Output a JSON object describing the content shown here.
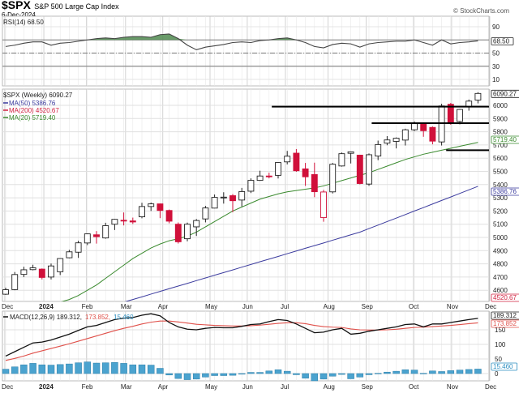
{
  "header": {
    "symbol": "$SPX",
    "name": "S&P 500 Large Cap Index",
    "date": "6-Dec-2024",
    "watermark": "© StockCharts.com"
  },
  "chart_data": [
    {
      "type": "line",
      "panel": "rsi",
      "label": "RSI(14) 68.50",
      "last_value": "68.50",
      "ylim": [
        0,
        100
      ],
      "ticks": [
        "90",
        "50",
        "30",
        "10"
      ],
      "reference_lines": [
        70,
        50,
        30
      ],
      "values": [
        60,
        62,
        65,
        67,
        67,
        62,
        65,
        66,
        68,
        70,
        72,
        73,
        72,
        74,
        75,
        75,
        74,
        78,
        79,
        72,
        62,
        55,
        59,
        61,
        63,
        66,
        67,
        66,
        69,
        70,
        72,
        73,
        70,
        66,
        60,
        58,
        63,
        65,
        64,
        59,
        64,
        66,
        67,
        68,
        68,
        70,
        66,
        62,
        70,
        64,
        66,
        67,
        68.5
      ],
      "colors": {
        "line": "#444444",
        "overbought_fill": "#4f8a4f"
      }
    },
    {
      "type": "candlestick",
      "panel": "price",
      "label": "$SPX (Weekly) 6090.27",
      "last_value": "6090.27",
      "ylim": [
        4560,
        6130
      ],
      "ticks": [
        "6000",
        "5900",
        "5800",
        "5700",
        "5600",
        "5500",
        "5400",
        "5300",
        "5200",
        "5100",
        "5000",
        "4900",
        "4800",
        "4700",
        "4600"
      ],
      "x_labels": [
        "Dec",
        "2024",
        "Feb",
        "Mar",
        "Apr",
        "May",
        "Jun",
        "Jul",
        "Aug",
        "Sep",
        "Oct",
        "Nov",
        "Dec"
      ],
      "ohlc": [
        [
          4570,
          4620,
          4565,
          4604
        ],
        [
          4605,
          4738,
          4600,
          4719
        ],
        [
          4720,
          4778,
          4700,
          4755
        ],
        [
          4756,
          4793,
          4751,
          4770
        ],
        [
          4760,
          4765,
          4682,
          4697
        ],
        [
          4700,
          4802,
          4682,
          4784
        ],
        [
          4740,
          4842,
          4715,
          4840
        ],
        [
          4846,
          4906,
          4842,
          4891
        ],
        [
          4888,
          4975,
          4845,
          4959
        ],
        [
          4958,
          5030,
          4942,
          5027
        ],
        [
          5020,
          5048,
          4953,
          5006
        ],
        [
          4996,
          5111,
          4990,
          5089
        ],
        [
          5100,
          5140,
          5056,
          5137
        ],
        [
          5130,
          5189,
          5091,
          5124
        ],
        [
          5125,
          5150,
          5102,
          5117
        ],
        [
          5156,
          5262,
          5145,
          5234
        ],
        [
          5234,
          5264,
          5200,
          5254
        ],
        [
          5254,
          5256,
          5146,
          5204
        ],
        [
          5204,
          5211,
          5107,
          5123
        ],
        [
          5100,
          5113,
          4954,
          4967
        ],
        [
          4990,
          5112,
          4971,
          5100
        ],
        [
          5080,
          5139,
          5011,
          5128
        ],
        [
          5140,
          5239,
          5114,
          5223
        ],
        [
          5222,
          5325,
          5220,
          5303
        ],
        [
          5305,
          5342,
          5256,
          5305
        ],
        [
          5316,
          5328,
          5191,
          5278
        ],
        [
          5283,
          5375,
          5234,
          5347
        ],
        [
          5350,
          5447,
          5336,
          5432
        ],
        [
          5432,
          5505,
          5428,
          5465
        ],
        [
          5465,
          5490,
          5447,
          5460
        ],
        [
          5470,
          5570,
          5446,
          5567
        ],
        [
          5572,
          5655,
          5553,
          5615
        ],
        [
          5638,
          5669,
          5497,
          5505
        ],
        [
          5519,
          5564,
          5390,
          5459
        ],
        [
          5476,
          5566,
          5305,
          5346
        ],
        [
          5150,
          5360,
          5119,
          5344
        ],
        [
          5345,
          5564,
          5333,
          5554
        ],
        [
          5541,
          5643,
          5536,
          5634
        ],
        [
          5637,
          5651,
          5560,
          5648
        ],
        [
          5623,
          5626,
          5402,
          5408
        ],
        [
          5404,
          5636,
          5390,
          5626
        ],
        [
          5616,
          5733,
          5585,
          5703
        ],
        [
          5714,
          5767,
          5698,
          5738
        ],
        [
          5727,
          5757,
          5674,
          5751
        ],
        [
          5737,
          5823,
          5696,
          5815
        ],
        [
          5815,
          5878,
          5805,
          5865
        ],
        [
          5857,
          5862,
          5762,
          5808
        ],
        [
          5833,
          5840,
          5705,
          5729
        ],
        [
          5723,
          6012,
          5696,
          5995
        ],
        [
          6008,
          6018,
          5853,
          5870
        ],
        [
          5878,
          5972,
          5856,
          5969
        ],
        [
          5992,
          6044,
          5960,
          6032
        ],
        [
          6040,
          6099,
          6015,
          6090
        ]
      ],
      "support_lines": [
        5990,
        5865,
        5660
      ],
      "moving_averages": [
        {
          "name": "MA(50)",
          "value": "5386.76",
          "color": "#3b3b9e",
          "values": [
            null,
            null,
            null,
            null,
            null,
            null,
            null,
            null,
            null,
            null,
            null,
            null,
            4490,
            4510,
            4530,
            4550,
            4571,
            4591,
            4612,
            4632,
            4652,
            4673,
            4693,
            4714,
            4734,
            4754,
            4775,
            4795,
            4816,
            4836,
            4856,
            4877,
            4897,
            4918,
            4938,
            4958,
            4979,
            4999,
            5020,
            5040,
            5067,
            5093,
            5120,
            5146,
            5173,
            5200,
            5226,
            5253,
            5280,
            5306,
            5333,
            5360,
            5386.76
          ]
        },
        {
          "name": "MA(200)",
          "value": "4520.67",
          "color": "#d0203f",
          "values": []
        },
        {
          "name": "MA(20)",
          "value": "5719.40",
          "color": "#3a8a2e",
          "values": [
            4420,
            4435,
            4450,
            4465,
            4480,
            4495,
            4510,
            4530,
            4560,
            4600,
            4640,
            4690,
            4740,
            4790,
            4840,
            4880,
            4920,
            4950,
            4975,
            4990,
            5010,
            5040,
            5080,
            5120,
            5160,
            5200,
            5230,
            5260,
            5290,
            5310,
            5330,
            5345,
            5355,
            5365,
            5375,
            5390,
            5410,
            5430,
            5450,
            5470,
            5490,
            5515,
            5540,
            5565,
            5590,
            5610,
            5630,
            5645,
            5660,
            5675,
            5690,
            5705,
            5719.4
          ]
        }
      ],
      "colors": {
        "up": "#ffffff",
        "down": "#d0103a",
        "outline": "#222222"
      }
    },
    {
      "type": "line+bar",
      "panel": "macd",
      "label": "MACD(12,26,9)",
      "macd_value": "189.312",
      "signal_value": "173.852",
      "histogram_value": "15.460",
      "ylim": [
        -20,
        215
      ],
      "ticks": [
        "150",
        "100",
        "50",
        "0"
      ],
      "macd": [
        60,
        75,
        90,
        105,
        108,
        115,
        125,
        135,
        148,
        160,
        165,
        175,
        185,
        190,
        192,
        200,
        205,
        198,
        175,
        160,
        152,
        150,
        155,
        158,
        157,
        157,
        162,
        168,
        170,
        178,
        185,
        182,
        170,
        155,
        140,
        142,
        150,
        155,
        135,
        138,
        145,
        150,
        155,
        160,
        168,
        170,
        160,
        170,
        170,
        175,
        180,
        185,
        189.3
      ],
      "signal": [
        45,
        52,
        60,
        70,
        78,
        86,
        94,
        102,
        111,
        120,
        129,
        138,
        147,
        155,
        162,
        170,
        176,
        180,
        180,
        177,
        173,
        169,
        167,
        165,
        164,
        163,
        163,
        164,
        166,
        169,
        172,
        174,
        174,
        171,
        165,
        161,
        159,
        158,
        153,
        150,
        149,
        149,
        150,
        152,
        155,
        158,
        159,
        161,
        163,
        165,
        168,
        171,
        173.9
      ],
      "colors": {
        "macd": "#111111",
        "signal": "#e0504a",
        "histogram": "#4ba3cf"
      }
    }
  ]
}
